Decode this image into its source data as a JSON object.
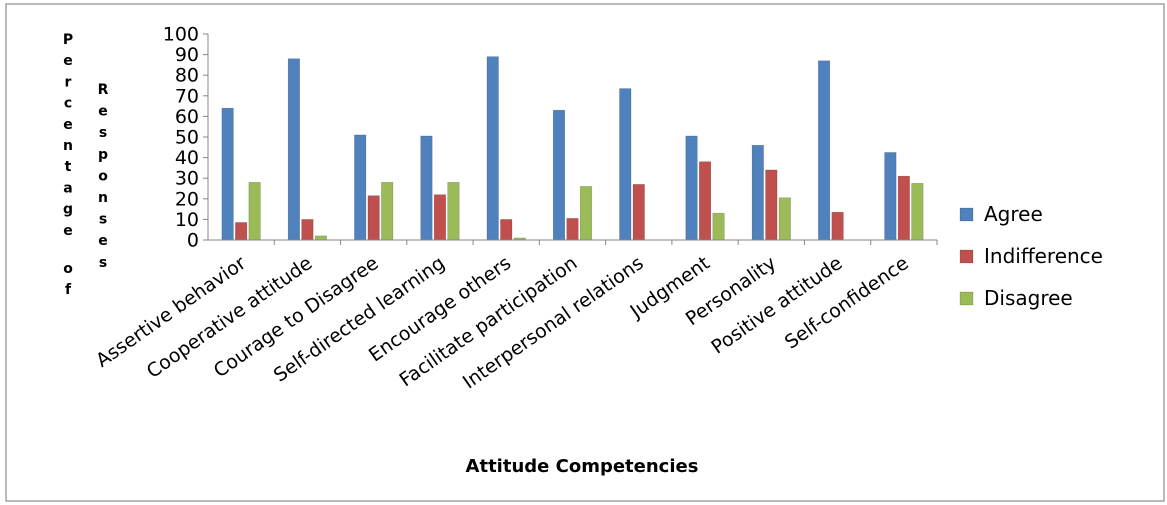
{
  "chart_data": {
    "type": "bar",
    "xlabel": "Attitude Competencies",
    "ylabel_outer": "Percentage of",
    "ylabel_inner": "Responses",
    "ylim": [
      0,
      100
    ],
    "yticks": [
      "0",
      "10",
      "20",
      "30",
      "40",
      "50",
      "60",
      "70",
      "80",
      "90",
      "100"
    ],
    "categories": [
      "Assertive behavior",
      "Cooperative attitude",
      "Courage to Disagree",
      "Self-directed learning",
      "Encourage others",
      "Facilitate participation",
      "Interpersonal relations",
      "Judgment",
      "Personality",
      "Positive attitude",
      "Self-confidence"
    ],
    "series": [
      {
        "name": "Agree",
        "color": "#4F81BD",
        "values": [
          64,
          88,
          51,
          50.5,
          89,
          63,
          73.5,
          50.5,
          46,
          87,
          42.5
        ]
      },
      {
        "name": "Indifference",
        "color": "#C0504D",
        "values": [
          8.5,
          10,
          21.5,
          22,
          10,
          10.5,
          27,
          38,
          34,
          13.5,
          31
        ]
      },
      {
        "name": "Disagree",
        "color": "#9BBB59",
        "values": [
          28,
          2,
          28,
          28,
          1,
          26,
          0,
          13,
          20.5,
          0,
          27.5
        ]
      }
    ],
    "legend_position": "right",
    "grid": false
  }
}
